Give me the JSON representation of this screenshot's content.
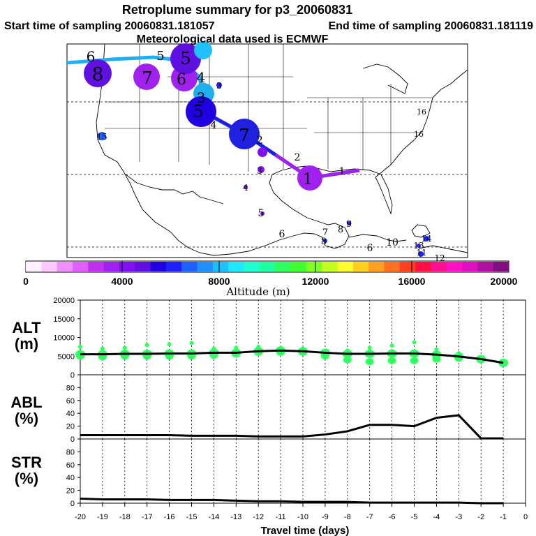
{
  "header": {
    "title": "Retroplume summary for p3_20060831",
    "start_label": "Start time of sampling 20060831.181057",
    "end_label": "End time of sampling 20060831.181119",
    "met_label": "Meteorological data used is ECMWF"
  },
  "colorbar": {
    "label": "Altitude (m)",
    "ticks": [
      "0",
      "4000",
      "8000",
      "12000",
      "16000",
      "20000"
    ],
    "colors": [
      "#fff0ff",
      "#ffc8ff",
      "#f090ff",
      "#e060ff",
      "#c030f0",
      "#a020f0",
      "#8010f0",
      "#6010e0",
      "#2000e0",
      "#2020ff",
      "#2060ff",
      "#2090ff",
      "#20c0ff",
      "#20e8ff",
      "#20ffd0",
      "#20ffa0",
      "#30ff60",
      "#40ff30",
      "#80ff20",
      "#c0ff20",
      "#ffff30",
      "#ffd020",
      "#ffa020",
      "#ff7020",
      "#ff4020",
      "#ff1040",
      "#ff1090",
      "#ff10c0",
      "#e010c0",
      "#b010a0",
      "#801080"
    ]
  },
  "map_labels": {
    "plume_numbers": [
      "1",
      "2",
      "3",
      "4",
      "5",
      "6",
      "7",
      "8",
      "9",
      "10",
      "11",
      "12",
      "13",
      "14",
      "15",
      "16"
    ]
  },
  "chart_data": [
    {
      "type": "scatter",
      "name": "ALT",
      "title": "ALT (m)",
      "xlabel": "Travel time (days)",
      "ylabel": "ALT (m)",
      "ylim": [
        0,
        20000
      ],
      "yticks": [
        "0",
        "5000",
        "10000",
        "15000",
        "20000"
      ],
      "x": [
        -20,
        -19,
        -18,
        -17,
        -16,
        -15,
        -14,
        -13,
        -12,
        -11,
        -10,
        -9,
        -8,
        -7,
        -6,
        -5,
        -4,
        -3,
        -2,
        -1
      ],
      "mean_line": [
        5500,
        5500,
        5600,
        5600,
        5700,
        5700,
        5900,
        5900,
        6300,
        6500,
        6300,
        5900,
        5600,
        5600,
        5700,
        5700,
        5400,
        4900,
        4200,
        3200
      ],
      "cluster_upper": [
        7500,
        7000,
        7200,
        8000,
        8200,
        8500,
        7000,
        7200,
        7500,
        7200,
        7000,
        6000,
        6500,
        7200,
        7800,
        8700,
        6800,
        5800,
        4700,
        3400
      ],
      "cluster_lower": [
        5000,
        4800,
        5000,
        5000,
        5000,
        5000,
        5200,
        5500,
        6000,
        6000,
        6000,
        5000,
        4000,
        3500,
        3800,
        3800,
        4200,
        4400,
        4000,
        3000
      ]
    },
    {
      "type": "line",
      "name": "ABL",
      "title": "ABL (%)",
      "ylabel": "ABL (%)",
      "ylim": [
        0,
        100
      ],
      "yticks": [
        "0",
        "20",
        "40",
        "60",
        "80"
      ],
      "x": [
        -20,
        -19,
        -18,
        -17,
        -16,
        -15,
        -14,
        -13,
        -12,
        -11,
        -10,
        -9,
        -8,
        -7,
        -6,
        -5,
        -4,
        -3,
        -2,
        -1
      ],
      "values": [
        6,
        6,
        6,
        6,
        6,
        5,
        5,
        5,
        4,
        4,
        4,
        7,
        12,
        22,
        22,
        20,
        33,
        37,
        1,
        1
      ]
    },
    {
      "type": "line",
      "name": "STR",
      "title": "STR (%)",
      "ylabel": "STR (%)",
      "ylim": [
        0,
        100
      ],
      "yticks": [
        "0",
        "20",
        "40",
        "60",
        "80"
      ],
      "x": [
        -20,
        -19,
        -18,
        -17,
        -16,
        -15,
        -14,
        -13,
        -12,
        -11,
        -10,
        -9,
        -8,
        -7,
        -6,
        -5,
        -4,
        -3,
        -2,
        -1
      ],
      "values": [
        7,
        6,
        6,
        6,
        5,
        5,
        5,
        4,
        3,
        3,
        2,
        2,
        2,
        1,
        1,
        1,
        1,
        1,
        0,
        0
      ]
    }
  ],
  "x_axis": {
    "ticks": [
      "-20",
      "-19",
      "-18",
      "-17",
      "-16",
      "-15",
      "-14",
      "-13",
      "-12",
      "-11",
      "-10",
      "-9",
      "-8",
      "-7",
      "-6",
      "-5",
      "-4",
      "-3",
      "-2",
      "-1",
      "0"
    ],
    "xlim": [
      -20,
      0
    ]
  },
  "panel_labels": {
    "alt_1": "ALT",
    "alt_2": "(m)",
    "abl_1": "ABL",
    "abl_2": "(%)",
    "str_1": "STR",
    "str_2": "(%)"
  }
}
